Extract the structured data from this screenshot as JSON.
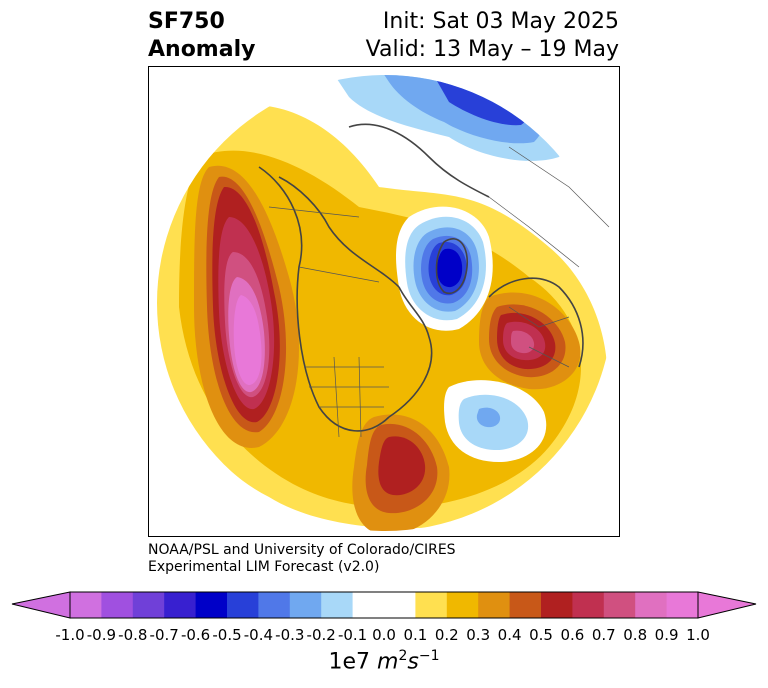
{
  "title": {
    "variable": "SF750",
    "kind": "Anomaly",
    "init": "Init: Sat 03 May 2025",
    "valid": "Valid: 13 May – 19 May"
  },
  "credit": {
    "line1": "NOAA/PSL and University of Colorado/CIRES",
    "line2": "Experimental LIM Forecast (v2.0)"
  },
  "map": {
    "projection": "polar stereographic (north)",
    "region": "North America / North Pacific / North Atlantic / Arctic"
  },
  "colorbar": {
    "units_prefix": "1e7",
    "units_main": "m",
    "units_sup1": "2",
    "units_mid": "s",
    "units_sup2": "−1",
    "ticks": [
      "-1.0",
      "-0.9",
      "-0.8",
      "-0.7",
      "-0.6",
      "-0.5",
      "-0.4",
      "-0.3",
      "-0.2",
      "-0.1",
      "0.0",
      "0.1",
      "0.2",
      "0.3",
      "0.4",
      "0.5",
      "0.6",
      "0.7",
      "0.8",
      "0.9",
      "1.0"
    ],
    "colors": [
      "#d070e0",
      "#a050e0",
      "#7040d8",
      "#3820d0",
      "#0000c8",
      "#2840d8",
      "#5078e8",
      "#70a8f0",
      "#a8d8f8",
      "#ffffff",
      "#ffffff",
      "#ffe050",
      "#f0b800",
      "#e09010",
      "#c85818",
      "#b02020",
      "#c03050",
      "#d05080",
      "#e070c0",
      "#e878d8"
    ],
    "extend_low": "#d070e0",
    "extend_high": "#e878d8"
  }
}
